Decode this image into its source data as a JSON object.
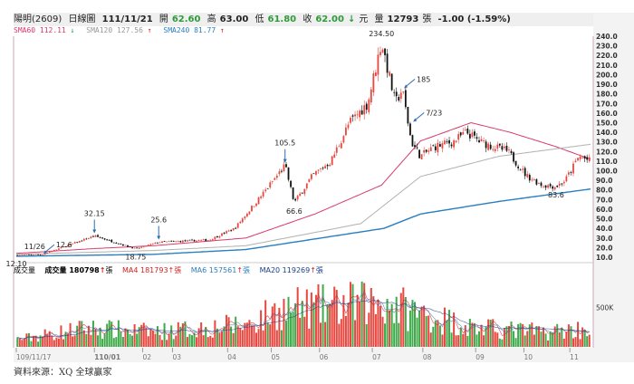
{
  "header": {
    "name": "陽明(2609)",
    "chart_type": "日線圖",
    "date": "111/11/21",
    "open_label": "開",
    "open": "62.60",
    "high_label": "高",
    "high": "63.00",
    "low_label": "低",
    "low": "61.80",
    "close_label": "收",
    "close": "62.00",
    "close_arrow": "↓",
    "unit": "元",
    "volume_label": "量",
    "volume": "12793",
    "volume_unit": "張",
    "change": "-1.00 (-1.59%)"
  },
  "legend": [
    {
      "text": "SMA60 112.11",
      "arrow": "↓",
      "color": "#d83a6a",
      "arrow_color": "#2e9b3a"
    },
    {
      "text": "SMA120 127.56",
      "arrow": "↑",
      "color": "#999999",
      "arrow_color": "#d62020"
    },
    {
      "text": "SMA240 81.77",
      "arrow": "↑",
      "color": "#2a7fc1",
      "arrow_color": "#d62020"
    }
  ],
  "volume_legend": {
    "title": "成交量",
    "vol": "成交量 180798",
    "vol_arrow": "↑",
    "unit": "張",
    "ma4": "MA4 181793",
    "ma4_arrow": "↑",
    "ma6": "MA6 157561",
    "ma6_arrow": "↑",
    "ma20": "MA20 119269",
    "ma20_arrow": "↑"
  },
  "source": "資料來源：XQ 全球贏家",
  "chart_data": {
    "type": "candlestick",
    "days": 250,
    "yticks": [
      240,
      230,
      220,
      210,
      200,
      190,
      180,
      170,
      160,
      150,
      140,
      130,
      120,
      110,
      100,
      90,
      80,
      70,
      60,
      50,
      40,
      30,
      20,
      10
    ],
    "ylim": [
      10,
      240
    ],
    "volume_tick": "500K",
    "volume_max_k": 900,
    "xticks": [
      {
        "i": 0,
        "label": "109/11/17"
      },
      {
        "i": 34,
        "label": "110/01"
      },
      {
        "i": 55,
        "label": "02"
      },
      {
        "i": 68,
        "label": "03"
      },
      {
        "i": 92,
        "label": "04"
      },
      {
        "i": 111,
        "label": "05"
      },
      {
        "i": 132,
        "label": "06"
      },
      {
        "i": 155,
        "label": "07"
      },
      {
        "i": 177,
        "label": "08"
      },
      {
        "i": 200,
        "label": "09"
      },
      {
        "i": 221,
        "label": "10"
      },
      {
        "i": 241,
        "label": "11"
      }
    ],
    "price_anchors": [
      [
        0,
        12.1
      ],
      [
        8,
        13
      ],
      [
        11,
        12.6
      ],
      [
        34,
        32.15
      ],
      [
        52,
        18.75
      ],
      [
        62,
        25.6
      ],
      [
        84,
        28
      ],
      [
        95,
        40
      ],
      [
        107,
        75
      ],
      [
        117,
        105.5
      ],
      [
        121,
        66.6
      ],
      [
        129,
        95
      ],
      [
        137,
        110
      ],
      [
        145,
        150
      ],
      [
        153,
        170
      ],
      [
        159,
        234.5
      ],
      [
        165,
        170
      ],
      [
        168,
        185
      ],
      [
        172,
        130
      ],
      [
        176,
        115
      ],
      [
        182,
        125
      ],
      [
        190,
        130
      ],
      [
        196,
        140
      ],
      [
        202,
        130
      ],
      [
        214,
        120
      ],
      [
        222,
        95
      ],
      [
        229,
        85
      ],
      [
        235,
        83.6
      ],
      [
        239,
        90
      ],
      [
        245,
        115
      ],
      [
        250,
        110
      ]
    ],
    "sma60": [
      [
        0,
        14
      ],
      [
        34,
        19
      ],
      [
        60,
        22
      ],
      [
        100,
        30
      ],
      [
        130,
        55
      ],
      [
        159,
        85
      ],
      [
        176,
        131
      ],
      [
        198,
        150
      ],
      [
        215,
        140
      ],
      [
        235,
        125
      ],
      [
        250,
        112
      ]
    ],
    "sma120": [
      [
        0,
        13
      ],
      [
        60,
        17
      ],
      [
        100,
        22
      ],
      [
        150,
        45
      ],
      [
        176,
        94
      ],
      [
        210,
        115
      ],
      [
        250,
        127.5
      ]
    ],
    "sma240": [
      [
        0,
        11
      ],
      [
        60,
        13
      ],
      [
        100,
        18
      ],
      [
        160,
        40
      ],
      [
        176,
        55
      ],
      [
        210,
        68
      ],
      [
        250,
        81
      ]
    ],
    "volume_anchors_k": [
      [
        0,
        100
      ],
      [
        30,
        250
      ],
      [
        60,
        200
      ],
      [
        100,
        300
      ],
      [
        115,
        500
      ],
      [
        140,
        550
      ],
      [
        160,
        600
      ],
      [
        175,
        450
      ],
      [
        200,
        250
      ],
      [
        230,
        200
      ],
      [
        250,
        250
      ]
    ],
    "annotations": [
      {
        "label": "234.50",
        "i": 159,
        "v": 234.5,
        "pos": "top"
      },
      {
        "label": "185",
        "i": 168,
        "v": 185,
        "pos": "arrow"
      },
      {
        "label": "7/23",
        "i": 172,
        "v": 150,
        "pos": "arrow"
      },
      {
        "label": "105.5",
        "i": 117,
        "v": 105.5,
        "pos": "arrow-down"
      },
      {
        "label": "66.6",
        "i": 121,
        "v": 66.6,
        "pos": "bottom"
      },
      {
        "label": "32.15",
        "i": 34,
        "v": 32.15,
        "pos": "arrow-down"
      },
      {
        "label": "25.6",
        "i": 62,
        "v": 25.6,
        "pos": "arrow-down"
      },
      {
        "label": "18.75",
        "i": 52,
        "v": 18.75,
        "pos": "bottom"
      },
      {
        "label": "11/26",
        "i": 8,
        "v": 13,
        "pos": "top"
      },
      {
        "label": "12.6",
        "i": 11,
        "v": 12.6,
        "pos": "arrow"
      },
      {
        "label": "12.10",
        "i": 0,
        "v": 12.1,
        "pos": "bottom"
      },
      {
        "label": "83.6",
        "i": 235,
        "v": 83.6,
        "pos": "bottom"
      }
    ]
  }
}
